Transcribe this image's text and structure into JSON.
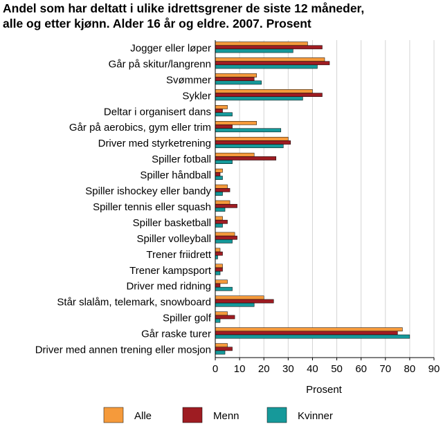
{
  "chart_data": {
    "type": "bar",
    "orientation": "horizontal",
    "title": "Andel som har deltatt i ulike idrettsgrener de siste 12 måneder, alle og etter kjønn. Alder 16 år og eldre. 2007. Prosent",
    "title_lines": [
      "Andel som har deltatt i ulike idrettsgrener de siste 12 måneder,",
      "alle og etter kjønn. Alder 16 år og eldre. 2007. Prosent"
    ],
    "xlabel": "Prosent",
    "ylabel": "",
    "xlim": [
      0,
      90
    ],
    "xticks": [
      0,
      10,
      20,
      30,
      40,
      50,
      60,
      70,
      80,
      90
    ],
    "grid": true,
    "legend_position": "bottom",
    "categories": [
      "Jogger eller løper",
      "Går på skitur/langrenn",
      "Svømmer",
      "Sykler",
      "Deltar i organisert dans",
      "Går på aerobics, gym eller trim",
      "Driver med styrketrening",
      "Spiller fotball",
      "Spiller håndball",
      "Spiller ishockey eller bandy",
      "Spiller tennis eller squash",
      "Spiller basketball",
      "Spiller volleyball",
      "Trener friidrett",
      "Trener kampsport",
      "Driver med ridning",
      "Står slalåm, telemark, snowboard",
      "Spiller golf",
      "Går raske turer",
      "Driver med annen trening eller mosjon"
    ],
    "series": [
      {
        "name": "Alle",
        "color": "#f59a3b",
        "values": [
          38,
          45,
          17,
          40,
          5,
          17,
          30,
          16,
          3,
          5,
          6,
          3,
          8,
          2,
          3,
          5,
          20,
          5,
          77,
          5
        ]
      },
      {
        "name": "Menn",
        "color": "#9e1c22",
        "values": [
          44,
          47,
          16,
          44,
          3,
          7,
          31,
          25,
          2,
          6,
          9,
          5,
          9,
          3,
          3,
          2,
          24,
          8,
          75,
          7
        ]
      },
      {
        "name": "Kvinner",
        "color": "#16999a",
        "values": [
          32,
          42,
          19,
          36,
          7,
          27,
          28,
          7,
          3,
          3,
          4,
          3,
          7,
          1,
          2,
          7,
          16,
          2,
          80,
          4
        ]
      }
    ]
  }
}
